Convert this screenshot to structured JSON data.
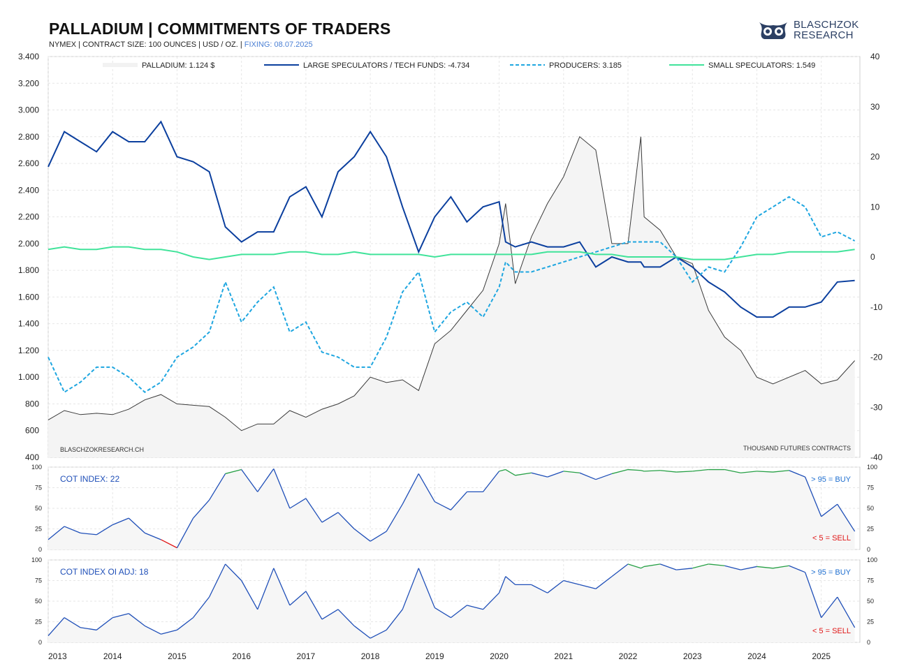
{
  "header": {
    "title": "PALLADIUM  |  COMMITMENTS OF TRADERS",
    "subtitle": "NYMEX | CONTRACT SIZE: 100 OUNCES | USD / OZ. | ",
    "fixing": "FIXING: 08.07.2025"
  },
  "logo": {
    "line1": "BLASCHZOK",
    "line2": "RESEARCH",
    "icon": "owl-eyes-logo"
  },
  "colors": {
    "price": "#3a3a3a",
    "price_fill": "#f4f4f4",
    "large_specs": "#0b3f9e",
    "producers": "#1ea6e0",
    "small_specs": "#40e39a",
    "cot_mid": "#1f4fb8",
    "cot_buy": "#27a046",
    "cot_sell": "#e01616",
    "grid": "#e6e6e6"
  },
  "footer_labels": {
    "source": "BLASCHZOKRESEARCH.CH",
    "units": "THOUSAND  FUTURES CONTRACTS"
  },
  "panels": {
    "cot": {
      "label": "COT INDEX: 22",
      "buy": "> 95 = BUY",
      "sell": "< 5 = SELL"
    },
    "cot_oi": {
      "label": "COT INDEX OI ADJ: 18",
      "buy": "> 95 = BUY",
      "sell": "< 5 = SELL"
    }
  },
  "chart_data": [
    {
      "type": "line",
      "title": "PALLADIUM | COMMITMENTS OF TRADERS",
      "x": [
        2013.0,
        2013.25,
        2013.5,
        2013.75,
        2014.0,
        2014.25,
        2014.5,
        2014.75,
        2015.0,
        2015.25,
        2015.5,
        2015.75,
        2016.0,
        2016.25,
        2016.5,
        2016.75,
        2017.0,
        2017.25,
        2017.5,
        2017.75,
        2018.0,
        2018.25,
        2018.5,
        2018.75,
        2019.0,
        2019.25,
        2019.5,
        2019.75,
        2020.0,
        2020.1,
        2020.25,
        2020.5,
        2020.75,
        2021.0,
        2021.25,
        2021.5,
        2021.75,
        2022.0,
        2022.2,
        2022.25,
        2022.5,
        2022.75,
        2023.0,
        2023.25,
        2023.5,
        2023.75,
        2024.0,
        2024.25,
        2024.5,
        2024.75,
        2025.0,
        2025.25,
        2025.52
      ],
      "xlim": [
        2013.0,
        2025.6
      ],
      "x_ticks": [
        "2013",
        "2014",
        "2015",
        "2016",
        "2017",
        "2018",
        "2019",
        "2020",
        "2021",
        "2022",
        "2023",
        "2024",
        "2025"
      ],
      "y_left": {
        "label": "",
        "lim": [
          400,
          3400
        ],
        "ticks": [
          "400",
          "600",
          "800",
          "1.000",
          "1.200",
          "1.400",
          "1.600",
          "1.800",
          "2.000",
          "2.200",
          "2.400",
          "2.600",
          "2.800",
          "3.000",
          "3.200",
          "3.400"
        ]
      },
      "y_right": {
        "label": "THOUSAND  FUTURES CONTRACTS",
        "lim": [
          -40,
          40
        ],
        "ticks": [
          "-40",
          "-30",
          "-20",
          "-10",
          "0",
          "10",
          "20",
          "30",
          "40"
        ]
      },
      "legend_position": "top",
      "grid": true,
      "series": [
        {
          "name": "PALLADIUM: 1.124 $",
          "axis": "left",
          "style": "area",
          "values": [
            680,
            750,
            720,
            730,
            720,
            760,
            830,
            870,
            800,
            790,
            780,
            700,
            600,
            650,
            650,
            750,
            700,
            760,
            800,
            860,
            1000,
            960,
            980,
            900,
            1250,
            1350,
            1500,
            1650,
            2000,
            2300,
            1700,
            2050,
            2300,
            2500,
            2800,
            2700,
            2000,
            2000,
            2800,
            2200,
            2100,
            1900,
            1850,
            1500,
            1300,
            1200,
            1000,
            950,
            1000,
            1050,
            950,
            980,
            1124
          ]
        },
        {
          "name": "LARGE SPECULATORS / TECH FUNDS: -4.734",
          "axis": "right",
          "style": "solid",
          "values": [
            18,
            25,
            23,
            21,
            25,
            23,
            23,
            27,
            20,
            19,
            17,
            6,
            3,
            5,
            5,
            12,
            14,
            8,
            17,
            20,
            25,
            20,
            10,
            1,
            8,
            12,
            7,
            10,
            11,
            3,
            2,
            3,
            2,
            2,
            3,
            -2,
            0,
            -1,
            -1,
            -2,
            -2,
            0,
            -2,
            -5,
            -7,
            -10,
            -12,
            -12,
            -10,
            -10,
            -9,
            -5,
            -4.7
          ]
        },
        {
          "name": "PRODUCERS: 3.185",
          "axis": "right",
          "style": "dashed",
          "values": [
            -20,
            -27,
            -25,
            -22,
            -22,
            -24,
            -27,
            -25,
            -20,
            -18,
            -15,
            -5,
            -13,
            -9,
            -6,
            -15,
            -13,
            -19,
            -20,
            -22,
            -22,
            -16,
            -7,
            -3,
            -15,
            -11,
            -9,
            -12,
            -6,
            -1,
            -3,
            -3,
            -2,
            -1,
            0,
            1,
            2,
            3,
            3,
            3,
            3,
            0,
            -5,
            -2,
            -3,
            2,
            8,
            10,
            12,
            10,
            4,
            5,
            3.2
          ]
        },
        {
          "name": "SMALL SPECULATORS: 1.549",
          "axis": "right",
          "style": "solid",
          "values": [
            1.5,
            2,
            1.5,
            1.5,
            2,
            2,
            1.5,
            1.5,
            1,
            0,
            -0.5,
            0,
            0.5,
            0.5,
            0.5,
            1,
            1,
            0.5,
            0.5,
            1,
            0.5,
            0.5,
            0.5,
            0.5,
            0,
            0.5,
            0.5,
            0.5,
            0.5,
            0.5,
            0.5,
            0.5,
            1,
            1,
            1,
            0.5,
            0.5,
            0,
            0,
            0,
            0,
            0,
            -0.5,
            -0.5,
            -0.5,
            0,
            0.5,
            0.5,
            1,
            1,
            1,
            1,
            1.5
          ]
        }
      ]
    },
    {
      "type": "area",
      "title": "COT INDEX: 22",
      "ylim": [
        0,
        100
      ],
      "y_ticks": [
        "0",
        "25",
        "50",
        "75",
        "100"
      ],
      "thresholds": {
        "buy": 95,
        "sell": 5
      },
      "x": [
        2013.0,
        2013.25,
        2013.5,
        2013.75,
        2014.0,
        2014.25,
        2014.5,
        2014.75,
        2015.0,
        2015.25,
        2015.5,
        2015.75,
        2016.0,
        2016.25,
        2016.5,
        2016.75,
        2017.0,
        2017.25,
        2017.5,
        2017.75,
        2018.0,
        2018.25,
        2018.5,
        2018.75,
        2019.0,
        2019.25,
        2019.5,
        2019.75,
        2020.0,
        2020.1,
        2020.25,
        2020.5,
        2020.75,
        2021.0,
        2021.25,
        2021.5,
        2021.75,
        2022.0,
        2022.2,
        2022.25,
        2022.5,
        2022.75,
        2023.0,
        2023.25,
        2023.5,
        2023.75,
        2024.0,
        2024.25,
        2024.5,
        2024.75,
        2025.0,
        2025.25,
        2025.52
      ],
      "values": [
        12,
        28,
        20,
        18,
        30,
        38,
        20,
        12,
        2,
        38,
        60,
        92,
        97,
        70,
        98,
        50,
        62,
        33,
        45,
        25,
        10,
        22,
        55,
        92,
        58,
        48,
        70,
        70,
        95,
        97,
        90,
        93,
        88,
        95,
        93,
        85,
        92,
        97,
        96,
        95,
        96,
        94,
        95,
        97,
        97,
        93,
        95,
        94,
        96,
        88,
        40,
        55,
        22
      ]
    },
    {
      "type": "area",
      "title": "COT INDEX OI ADJ: 18",
      "ylim": [
        0,
        100
      ],
      "y_ticks": [
        "0",
        "25",
        "50",
        "75",
        "100"
      ],
      "thresholds": {
        "buy": 95,
        "sell": 5
      },
      "x": [
        2013.0,
        2013.25,
        2013.5,
        2013.75,
        2014.0,
        2014.25,
        2014.5,
        2014.75,
        2015.0,
        2015.25,
        2015.5,
        2015.75,
        2016.0,
        2016.25,
        2016.5,
        2016.75,
        2017.0,
        2017.25,
        2017.5,
        2017.75,
        2018.0,
        2018.25,
        2018.5,
        2018.75,
        2019.0,
        2019.25,
        2019.5,
        2019.75,
        2020.0,
        2020.1,
        2020.25,
        2020.5,
        2020.75,
        2021.0,
        2021.25,
        2021.5,
        2021.75,
        2022.0,
        2022.2,
        2022.25,
        2022.5,
        2022.75,
        2023.0,
        2023.25,
        2023.5,
        2023.75,
        2024.0,
        2024.25,
        2024.5,
        2024.75,
        2025.0,
        2025.25,
        2025.52
      ],
      "values": [
        8,
        30,
        18,
        15,
        30,
        35,
        20,
        10,
        15,
        30,
        55,
        95,
        75,
        40,
        90,
        45,
        62,
        28,
        40,
        20,
        5,
        15,
        40,
        90,
        42,
        30,
        45,
        40,
        60,
        80,
        70,
        70,
        60,
        75,
        70,
        65,
        80,
        95,
        90,
        92,
        95,
        88,
        90,
        95,
        93,
        88,
        92,
        90,
        93,
        85,
        30,
        55,
        18
      ]
    }
  ]
}
